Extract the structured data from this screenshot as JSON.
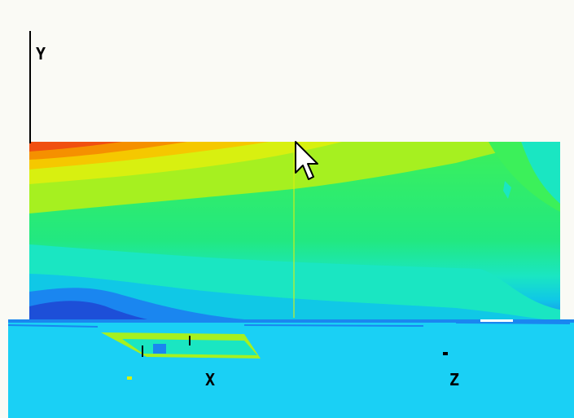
{
  "axes": {
    "y_label": "Y",
    "x_label": "X",
    "z_label": "Z"
  },
  "colors": {
    "background": "#fafaf5",
    "floor": "#1ad0f5",
    "contour_scale": [
      "#1d4fd8",
      "#1a86f0",
      "#10c8e6",
      "#1ae6c2",
      "#22e880",
      "#3cf05a",
      "#a6f020",
      "#d8f010",
      "#f5c800",
      "#f59000",
      "#f05010"
    ]
  },
  "icons": {
    "cursor": "arrow-cursor-icon"
  }
}
